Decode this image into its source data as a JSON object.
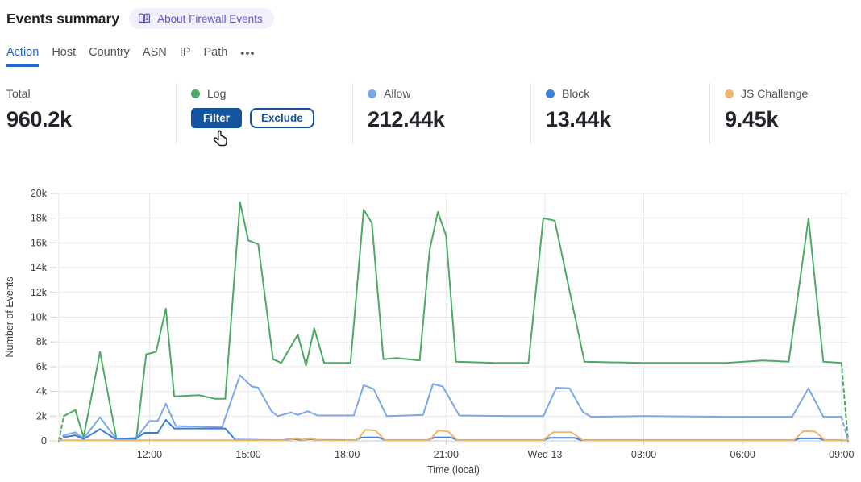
{
  "header": {
    "title": "Events summary",
    "badge": {
      "icon": "book-icon",
      "label": "About Firewall Events",
      "color": "#5b55d0"
    }
  },
  "tabs": {
    "items": [
      {
        "label": "Action",
        "active": true
      },
      {
        "label": "Host",
        "active": false
      },
      {
        "label": "Country",
        "active": false
      },
      {
        "label": "ASN",
        "active": false
      },
      {
        "label": "IP",
        "active": false
      },
      {
        "label": "Path",
        "active": false
      }
    ],
    "more": "•••"
  },
  "stats": {
    "total": {
      "label": "Total",
      "value": "960.2k"
    },
    "log": {
      "label": "Log",
      "color": "#4caa63",
      "filter_label": "Filter",
      "exclude_label": "Exclude"
    },
    "items": [
      {
        "label": "Allow",
        "value": "212.44k",
        "color": "#7ba6e9"
      },
      {
        "label": "Block",
        "value": "13.44k",
        "color": "#3d7edb"
      },
      {
        "label": "JS Challenge",
        "value": "9.45k",
        "color": "#efb56a"
      }
    ]
  },
  "chart_data": {
    "type": "line",
    "title": "",
    "xlabel": "Time (local)",
    "ylabel": "Number of Events",
    "ylim": [
      0,
      20000
    ],
    "grid": true,
    "legend_position": "none",
    "x_unit": "hours_since_tue_00:00",
    "x_range_hours": [
      9.25,
      33.2
    ],
    "y_ticks": [
      {
        "v": 0,
        "label": "0"
      },
      {
        "v": 2000,
        "label": "2k"
      },
      {
        "v": 4000,
        "label": "4k"
      },
      {
        "v": 6000,
        "label": "6k"
      },
      {
        "v": 8000,
        "label": "8k"
      },
      {
        "v": 10000,
        "label": "10k"
      },
      {
        "v": 12000,
        "label": "12k"
      },
      {
        "v": 14000,
        "label": "14k"
      },
      {
        "v": 16000,
        "label": "16k"
      },
      {
        "v": 18000,
        "label": "18k"
      },
      {
        "v": 20000,
        "label": "20k"
      }
    ],
    "x_ticks": [
      {
        "t": 12,
        "label": "12:00"
      },
      {
        "t": 15,
        "label": "15:00"
      },
      {
        "t": 18,
        "label": "18:00"
      },
      {
        "t": 21,
        "label": "21:00"
      },
      {
        "t": 24,
        "label": "Wed 13"
      },
      {
        "t": 27,
        "label": "03:00"
      },
      {
        "t": 30,
        "label": "06:00"
      },
      {
        "t": 33,
        "label": "09:00"
      }
    ],
    "series": [
      {
        "name": "Log",
        "color": "#4caa63",
        "dashed_lead": [
          [
            9.25,
            0
          ],
          [
            9.4,
            2000
          ]
        ],
        "points": [
          [
            9.4,
            2000
          ],
          [
            9.75,
            2500
          ],
          [
            10.0,
            300
          ],
          [
            10.5,
            7200
          ],
          [
            11.0,
            150
          ],
          [
            11.6,
            150
          ],
          [
            11.9,
            7000
          ],
          [
            12.2,
            7200
          ],
          [
            12.5,
            10700
          ],
          [
            12.75,
            3600
          ],
          [
            13.5,
            3700
          ],
          [
            14.0,
            3400
          ],
          [
            14.3,
            3400
          ],
          [
            14.75,
            19300
          ],
          [
            15.0,
            16200
          ],
          [
            15.3,
            15900
          ],
          [
            15.75,
            6600
          ],
          [
            16.0,
            6300
          ],
          [
            16.5,
            8600
          ],
          [
            16.75,
            6100
          ],
          [
            17.0,
            9100
          ],
          [
            17.3,
            6300
          ],
          [
            18.1,
            6300
          ],
          [
            18.5,
            18700
          ],
          [
            18.75,
            17600
          ],
          [
            19.1,
            6600
          ],
          [
            19.5,
            6700
          ],
          [
            20.2,
            6500
          ],
          [
            20.5,
            15400
          ],
          [
            20.75,
            18500
          ],
          [
            21.0,
            16600
          ],
          [
            21.3,
            6400
          ],
          [
            22.5,
            6300
          ],
          [
            23.5,
            6300
          ],
          [
            23.95,
            18000
          ],
          [
            24.3,
            17800
          ],
          [
            25.2,
            6400
          ],
          [
            27.0,
            6300
          ],
          [
            29.5,
            6300
          ],
          [
            30.6,
            6500
          ],
          [
            31.4,
            6400
          ],
          [
            32.0,
            18000
          ],
          [
            32.45,
            6400
          ],
          [
            33.0,
            6300
          ]
        ],
        "dashed_tail": [
          [
            33.0,
            6300
          ],
          [
            33.2,
            0
          ]
        ]
      },
      {
        "name": "Allow",
        "color": "#7ba6e9",
        "dashed_lead": [
          [
            9.25,
            0
          ],
          [
            9.4,
            450
          ]
        ],
        "points": [
          [
            9.4,
            450
          ],
          [
            9.75,
            700
          ],
          [
            10.0,
            200
          ],
          [
            10.5,
            1900
          ],
          [
            11.0,
            150
          ],
          [
            11.6,
            250
          ],
          [
            12.0,
            1600
          ],
          [
            12.25,
            1600
          ],
          [
            12.5,
            3000
          ],
          [
            12.8,
            1200
          ],
          [
            13.5,
            1150
          ],
          [
            14.2,
            1100
          ],
          [
            14.75,
            5300
          ],
          [
            15.1,
            4400
          ],
          [
            15.3,
            4300
          ],
          [
            15.7,
            2400
          ],
          [
            15.9,
            2000
          ],
          [
            16.3,
            2300
          ],
          [
            16.5,
            2100
          ],
          [
            16.8,
            2400
          ],
          [
            17.1,
            2050
          ],
          [
            18.2,
            2050
          ],
          [
            18.5,
            4500
          ],
          [
            18.8,
            4200
          ],
          [
            19.2,
            2000
          ],
          [
            20.3,
            2100
          ],
          [
            20.6,
            4600
          ],
          [
            20.9,
            4400
          ],
          [
            21.4,
            2050
          ],
          [
            23.0,
            2000
          ],
          [
            23.95,
            2000
          ],
          [
            24.35,
            4300
          ],
          [
            24.75,
            4250
          ],
          [
            25.15,
            2350
          ],
          [
            25.4,
            1950
          ],
          [
            27.0,
            2000
          ],
          [
            29.5,
            1950
          ],
          [
            31.5,
            1950
          ],
          [
            32.0,
            4250
          ],
          [
            32.45,
            1950
          ],
          [
            33.0,
            1950
          ]
        ],
        "dashed_tail": [
          [
            33.0,
            1950
          ],
          [
            33.2,
            0
          ]
        ]
      },
      {
        "name": "Block",
        "color": "#3d7edb",
        "dashed_lead": [
          [
            9.25,
            0
          ],
          [
            9.4,
            300
          ]
        ],
        "points": [
          [
            9.4,
            300
          ],
          [
            9.75,
            450
          ],
          [
            10.0,
            150
          ],
          [
            10.5,
            950
          ],
          [
            11.0,
            100
          ],
          [
            11.6,
            200
          ],
          [
            11.85,
            650
          ],
          [
            12.25,
            650
          ],
          [
            12.5,
            1700
          ],
          [
            12.75,
            1000
          ],
          [
            14.3,
            1000
          ],
          [
            14.6,
            100
          ],
          [
            16.0,
            60
          ],
          [
            16.4,
            150
          ],
          [
            16.6,
            80
          ],
          [
            16.9,
            150
          ],
          [
            17.1,
            80
          ],
          [
            18.25,
            60
          ],
          [
            18.45,
            280
          ],
          [
            18.95,
            280
          ],
          [
            19.15,
            60
          ],
          [
            20.45,
            60
          ],
          [
            20.65,
            280
          ],
          [
            21.15,
            280
          ],
          [
            21.35,
            60
          ],
          [
            23.95,
            60
          ],
          [
            24.15,
            250
          ],
          [
            24.9,
            250
          ],
          [
            25.1,
            60
          ],
          [
            31.55,
            60
          ],
          [
            31.75,
            200
          ],
          [
            32.3,
            200
          ],
          [
            32.5,
            60
          ],
          [
            33.0,
            60
          ]
        ],
        "dashed_tail": [
          [
            33.0,
            60
          ],
          [
            33.2,
            0
          ]
        ]
      },
      {
        "name": "JS Challenge",
        "color": "#efb56a",
        "points": [
          [
            9.25,
            50
          ],
          [
            14.0,
            50
          ],
          [
            16.2,
            50
          ],
          [
            16.45,
            200
          ],
          [
            16.65,
            100
          ],
          [
            16.9,
            200
          ],
          [
            17.15,
            50
          ],
          [
            18.3,
            50
          ],
          [
            18.55,
            900
          ],
          [
            18.85,
            850
          ],
          [
            19.15,
            50
          ],
          [
            20.5,
            50
          ],
          [
            20.75,
            830
          ],
          [
            21.05,
            780
          ],
          [
            21.35,
            50
          ],
          [
            23.95,
            50
          ],
          [
            24.25,
            700
          ],
          [
            24.8,
            700
          ],
          [
            25.15,
            50
          ],
          [
            31.55,
            50
          ],
          [
            31.85,
            800
          ],
          [
            32.2,
            750
          ],
          [
            32.5,
            50
          ],
          [
            33.2,
            50
          ]
        ]
      }
    ]
  }
}
